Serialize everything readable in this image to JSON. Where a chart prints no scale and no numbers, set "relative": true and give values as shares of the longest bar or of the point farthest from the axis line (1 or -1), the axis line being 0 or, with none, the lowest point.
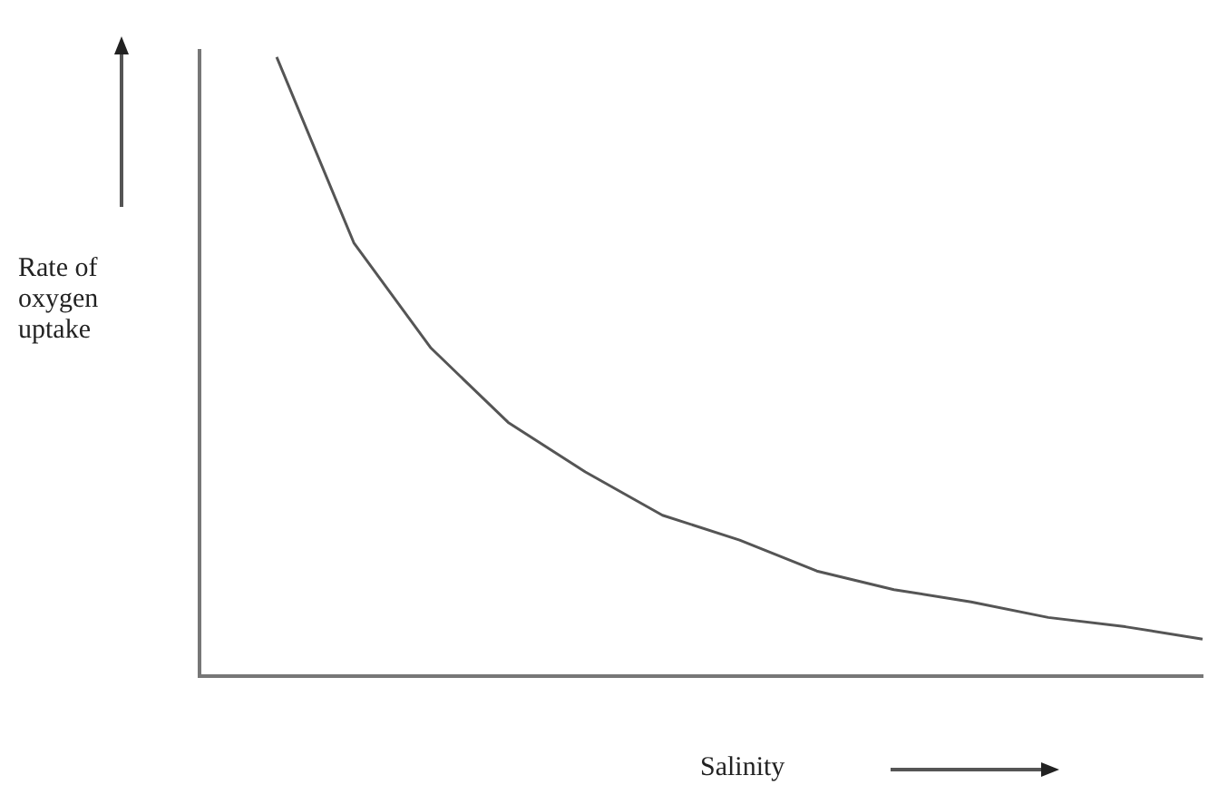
{
  "chart_data": {
    "type": "line",
    "relative": true,
    "xlabel": "Salinity",
    "ylabel": "Rate of oxygen uptake",
    "categories": [
      null,
      null,
      null,
      null,
      null,
      null,
      null,
      null,
      null,
      null,
      null,
      null,
      null,
      null
    ],
    "series": [
      {
        "color": "#555555",
        "values": [
          null,
          1,
          0.7,
          0.53,
          0.41,
          0.33,
          0.26,
          0.22,
          0.17,
          0.14,
          0.12,
          0.095,
          0.08,
          0.06
        ]
      }
    ],
    "grid": false,
    "legend": false,
    "marker": "none",
    "line_style": "solid"
  }
}
